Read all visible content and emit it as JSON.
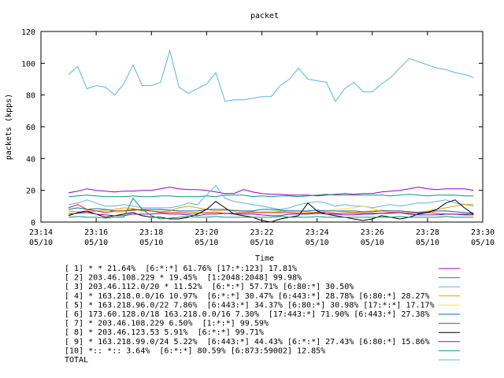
{
  "chart_data": {
    "type": "line",
    "title": "packet",
    "xlabel": "Time",
    "ylabel": "packets (kpps)",
    "ylim": [
      0,
      120
    ],
    "yticks": [
      "0",
      "20",
      "40",
      "60",
      "80",
      "100",
      "120"
    ],
    "xlim_minutes": [
      0,
      16
    ],
    "xticks": [
      {
        "time": "23:14",
        "date": "05/10"
      },
      {
        "time": "23:16",
        "date": "05/10"
      },
      {
        "time": "23:18",
        "date": "05/10"
      },
      {
        "time": "23:20",
        "date": "05/10"
      },
      {
        "time": "23:22",
        "date": "05/10"
      },
      {
        "time": "23:24",
        "date": "05/10"
      },
      {
        "time": "23:26",
        "date": "05/10"
      },
      {
        "time": "23:28",
        "date": "05/10"
      },
      {
        "time": "23:30",
        "date": "05/10"
      }
    ],
    "grid": false,
    "legend_placement": "bottom",
    "x": [
      "23:15",
      "23:15:20",
      "23:15:40",
      "23:16",
      "23:16:20",
      "23:16:40",
      "23:17",
      "23:17:20",
      "23:17:40",
      "23:18",
      "23:18:20",
      "23:18:40",
      "23:19",
      "23:19:20",
      "23:19:40",
      "23:20",
      "23:20:20",
      "23:20:40",
      "23:21",
      "23:21:20",
      "23:21:40",
      "23:22",
      "23:22:20",
      "23:22:40",
      "23:23",
      "23:23:20",
      "23:23:40",
      "23:24",
      "23:24:20",
      "23:24:40",
      "23:25",
      "23:25:20",
      "23:25:40",
      "23:26",
      "23:26:20",
      "23:26:40",
      "23:27",
      "23:27:20",
      "23:27:40",
      "23:28",
      "23:28:20",
      "23:28:40",
      "23:29",
      "23:29:20",
      "23:29:40"
    ],
    "series": [
      {
        "name": "[ 1] * * 21.64%  [6:*:*] 61.76% [17:*:123] 17.81%",
        "color": "#9400d3",
        "values": [
          18.5,
          19.5,
          21,
          20,
          19.5,
          19,
          19.5,
          19.5,
          20,
          20,
          21,
          22,
          21,
          20.5,
          20.5,
          20,
          19,
          18,
          18,
          20.5,
          19,
          18,
          17.5,
          17.5,
          17,
          17,
          17,
          16.5,
          17,
          17.5,
          18,
          17.5,
          18,
          18,
          19,
          19.5,
          20,
          21,
          22,
          21,
          20.5,
          21,
          21,
          21,
          20
        ]
      },
      {
        "name": "[ 2] 203.46.108.229 * 19.45%  [1:2048:2048] 99.98%",
        "color": "#009e73",
        "values": [
          16,
          16.5,
          17,
          16.5,
          16,
          16,
          16,
          16.5,
          16,
          16,
          16.5,
          16.5,
          16,
          16,
          16,
          16.5,
          16,
          17,
          17,
          17,
          16,
          16.5,
          16,
          16.5,
          16.5,
          16,
          16.5,
          17,
          17.5,
          17,
          17,
          17,
          17,
          17,
          17,
          16.5,
          17,
          17.5,
          17,
          16.5,
          17,
          17,
          17,
          16.5,
          16.5
        ]
      },
      {
        "name": "[ 3] 203.46.112.0/20 * 11.52%  [6:*:*] 57.71% [6:80:*] 30.50%",
        "color": "#56b4e9",
        "values": [
          11,
          12,
          14,
          12,
          10,
          10,
          11,
          10,
          9,
          9,
          9,
          9,
          10,
          12,
          11,
          17,
          23,
          15,
          13,
          12,
          11,
          10,
          9,
          8,
          9,
          11,
          12,
          13,
          12,
          10,
          11,
          10,
          10,
          9,
          10,
          11,
          10,
          11,
          12,
          12,
          13,
          14,
          12,
          11,
          10
        ]
      },
      {
        "name": "[ 4] * 163.218.0.0/16 10.97%  [6:*:*] 30.47% [6:443:*] 28.78% [6:80:*] 28.27%",
        "color": "#e69f00",
        "values": [
          7,
          6.5,
          6,
          7,
          7.5,
          8,
          9,
          8.5,
          7,
          7,
          6.5,
          7,
          9,
          10,
          9,
          8,
          7,
          7.5,
          7.5,
          7,
          6.5,
          6,
          6,
          6.5,
          7,
          7,
          6.5,
          6,
          7,
          7,
          6.5,
          6,
          6.5,
          7,
          7.5,
          7,
          7,
          6.5,
          6,
          7,
          8,
          9,
          10,
          11,
          11
        ]
      },
      {
        "name": "[ 5] * 163.218.96.0/22 7.86%  [6:443:*] 34.37% [6:80:*] 30.98% [17:*:*] 17.17%",
        "color": "#f0e442",
        "values": [
          6,
          6.5,
          7,
          7,
          6.5,
          6,
          6,
          7,
          8,
          8,
          7.5,
          7.5,
          7,
          6.5,
          6,
          6,
          6,
          5.5,
          5,
          5.5,
          6,
          6.5,
          7,
          7,
          7,
          6.5,
          6,
          6,
          7,
          8,
          8.5,
          9,
          10,
          8.5,
          7,
          6,
          5.5,
          6,
          6.5,
          7,
          7,
          7,
          6.5,
          6,
          6
        ]
      },
      {
        "name": "[ 6] 173.60.128.0/18 163.218.0.0/16 7.30%  [17:443:*] 71.90% [6:443:*] 27.38%",
        "color": "#0072b2",
        "values": [
          8,
          9,
          8,
          8.5,
          8,
          7,
          7,
          7.5,
          8,
          8,
          8,
          7.5,
          7,
          7,
          7,
          8,
          8,
          8,
          7,
          7,
          7,
          8,
          8,
          7.5,
          7,
          7,
          7,
          7.5,
          7,
          7,
          7,
          7,
          6.5,
          6.5,
          7,
          7,
          7,
          6.5,
          6,
          6.5,
          7,
          7,
          6.5,
          6,
          5.5
        ]
      },
      {
        "name": "[ 7] * 203.46.108.229 6.50%  [1:*:*] 99.59%",
        "color": "#e51e10",
        "values": [
          9,
          11,
          8,
          7,
          6,
          7,
          7,
          8,
          7.5,
          7,
          6,
          6,
          6,
          5.5,
          5.5,
          6,
          6,
          5.5,
          5.5,
          6,
          6,
          6,
          6,
          6,
          6,
          5.5,
          5.5,
          6,
          6,
          5.5,
          5.5,
          5.5,
          5.5,
          5.5,
          5.5,
          6,
          6,
          5.5,
          5.5,
          6,
          5.5,
          5,
          5,
          5,
          5
        ]
      },
      {
        "name": "[ 8] * 203.46.123.53 5.91%  [6:*:*] 99.71%",
        "color": "#000000",
        "values": [
          4,
          6,
          7,
          5,
          3,
          4,
          5,
          6,
          4,
          3,
          3,
          2,
          2,
          3,
          5,
          8,
          13,
          9,
          5,
          4,
          3,
          1,
          0,
          2,
          3,
          4,
          12,
          7,
          5,
          4,
          3,
          2,
          1,
          2,
          4,
          3,
          2,
          3,
          5,
          6,
          8,
          12,
          14,
          9,
          5
        ]
      },
      {
        "name": "[ 9] * 163.218.99.0/24 5.22%  [6:443:*] 44.43% [6:*:*] 27.43% [6:80:*] 15.86%",
        "color": "#9400d3",
        "values": [
          5,
          5.5,
          6,
          5,
          4.5,
          4,
          4,
          5,
          5,
          5,
          5.5,
          5,
          5,
          4.5,
          4,
          5,
          5,
          5.5,
          5,
          5,
          5,
          4.5,
          4,
          4,
          5,
          5,
          5,
          5.5,
          5,
          5,
          4.5,
          4.5,
          5,
          5,
          5.5,
          5.5,
          6,
          5,
          4.5,
          4.5,
          4.5,
          5,
          5,
          4.5,
          4.5
        ]
      },
      {
        "name": "[10] *:: *:: 3.64%  [6:*:*] 80.59% [6:873:59002] 12.85%",
        "color": "#009e73",
        "values": [
          3,
          3.5,
          3,
          3,
          2.5,
          3,
          3,
          15,
          8,
          4,
          2,
          2.5,
          3,
          3.5,
          3,
          3,
          3.5,
          3,
          3,
          3,
          3,
          3,
          3,
          3.5,
          3,
          3,
          3,
          3.5,
          3,
          3,
          3,
          3,
          3,
          3,
          3,
          3,
          3.5,
          3,
          3,
          3,
          3,
          3.5,
          3,
          3,
          3
        ]
      },
      {
        "name": "TOTAL",
        "color": "#56b4e9",
        "values": [
          93,
          98,
          84,
          86,
          85,
          80,
          87,
          99,
          86,
          86,
          88,
          108,
          85,
          81,
          84,
          87,
          94,
          76,
          77,
          77,
          78,
          79,
          79,
          86,
          90,
          97,
          90,
          89,
          88,
          76,
          84,
          88,
          82,
          82,
          87,
          91,
          97,
          103,
          101,
          99,
          97,
          96,
          94,
          93,
          91
        ]
      }
    ]
  }
}
